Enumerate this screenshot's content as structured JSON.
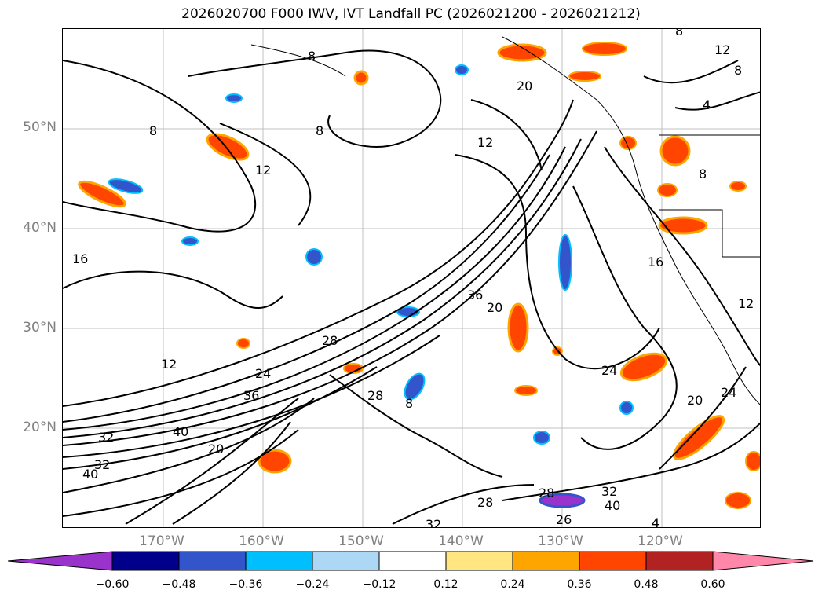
{
  "title": "2026020700 F000 IWV, IVT Landfall PC (2026021200 - 2026021212)",
  "map": {
    "projection": "cylindrical",
    "lon_range": [
      -180,
      -110
    ],
    "lat_range": [
      10,
      60
    ],
    "gridlines": true
  },
  "lat_labels": [
    "50°N",
    "40°N",
    "30°N",
    "20°N"
  ],
  "lon_labels": [
    "170°W",
    "160°W",
    "150°W",
    "140°W",
    "130°W",
    "120°W"
  ],
  "colorbar": {
    "orientation": "horizontal",
    "extend": "both",
    "ticks": [
      "−0.60",
      "−0.48",
      "−0.36",
      "−0.24",
      "−0.12",
      "0.12",
      "0.24",
      "0.36",
      "0.48",
      "0.60"
    ],
    "colors": [
      "#9933cc",
      "#00008b",
      "#3355cc",
      "#00bfff",
      "#add8f5",
      "#ffffff",
      "#ffe680",
      "#ffa500",
      "#ff4500",
      "#b22222",
      "#ff88aa"
    ]
  },
  "contour_labels": [
    "8",
    "12",
    "8",
    "8",
    "20",
    "12",
    "8",
    "16",
    "8",
    "8",
    "12",
    "4",
    "16",
    "36",
    "20",
    "28",
    "24",
    "12",
    "36",
    "28",
    "8",
    "40",
    "32",
    "20",
    "24",
    "28",
    "32",
    "20",
    "24",
    "28",
    "32",
    "40",
    "32",
    "40",
    "26",
    "12",
    "4"
  ]
}
